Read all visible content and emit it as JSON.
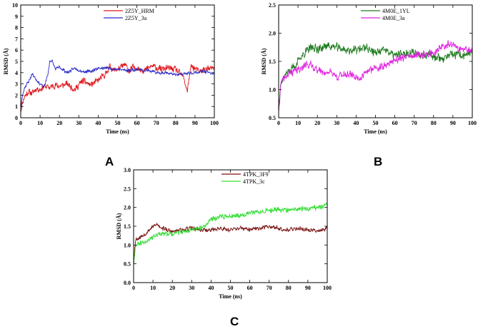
{
  "figure": {
    "panel_letters": [
      "A",
      "B",
      "C"
    ]
  },
  "chart_data": [
    {
      "type": "line",
      "panel": "A",
      "title": "",
      "xlabel": "Time (ns)",
      "ylabel": "RMSD (Å)",
      "xlim": [
        0,
        100
      ],
      "ylim": [
        0,
        10
      ],
      "xticks": [
        0,
        10,
        20,
        30,
        40,
        50,
        60,
        70,
        80,
        90,
        100
      ],
      "yticks": [
        0,
        1,
        2,
        3,
        4,
        5,
        6,
        7,
        8,
        9,
        10
      ],
      "ytick_decimals": 0,
      "legend_position": "top-center",
      "series": [
        {
          "name": "2Z5Y_HRM",
          "color": "#e0191f",
          "x": [
            0,
            1,
            2,
            4,
            6,
            8,
            10,
            12,
            15,
            18,
            20,
            24,
            28,
            32,
            36,
            40,
            44,
            46,
            48,
            50,
            54,
            56,
            58,
            60,
            64,
            68,
            72,
            76,
            80,
            84,
            86,
            88,
            92,
            96,
            100
          ],
          "y": [
            0.6,
            1.4,
            1.9,
            2.3,
            2.2,
            2.6,
            2.5,
            2.8,
            2.7,
            2.9,
            2.8,
            3.0,
            2.5,
            3.3,
            2.9,
            3.3,
            3.9,
            4.6,
            4.2,
            4.3,
            4.7,
            4.1,
            4.5,
            4.4,
            4.2,
            4.6,
            4.3,
            4.4,
            4.3,
            3.6,
            2.4,
            4.6,
            4.1,
            4.3,
            4.4
          ],
          "noise": 0.35,
          "seed": 11
        },
        {
          "name": "2Z5Y_3a",
          "color": "#2a2bc8",
          "x": [
            0,
            1,
            2,
            4,
            6,
            8,
            10,
            12,
            14,
            15,
            16,
            18,
            20,
            24,
            28,
            32,
            36,
            40,
            45,
            50,
            55,
            60,
            65,
            70,
            75,
            80,
            85,
            90,
            95,
            100
          ],
          "y": [
            0.8,
            2.0,
            2.7,
            3.2,
            3.9,
            3.4,
            3.0,
            2.7,
            3.8,
            5.0,
            5.1,
            4.3,
            4.5,
            4.0,
            4.4,
            4.1,
            4.1,
            4.4,
            4.4,
            4.3,
            4.2,
            4.3,
            4.2,
            4.0,
            4.0,
            3.8,
            3.9,
            4.0,
            4.1,
            3.9
          ],
          "noise": 0.18,
          "seed": 23
        }
      ]
    },
    {
      "type": "line",
      "panel": "B",
      "title": "",
      "xlabel": "Time (ns)",
      "ylabel": "RMSD (Å)",
      "xlim": [
        0,
        100
      ],
      "ylim": [
        0.5,
        2.5
      ],
      "xticks": [
        0,
        10,
        20,
        30,
        40,
        50,
        60,
        70,
        80,
        90,
        100
      ],
      "yticks": [
        0.5,
        1.0,
        1.5,
        2.0,
        2.5
      ],
      "ytick_decimals": 1,
      "legend_position": "top-center",
      "series": [
        {
          "name": "4M0E_1YL",
          "color": "#1d7a1d",
          "x": [
            0,
            1,
            3,
            6,
            9,
            12,
            15,
            18,
            21,
            25,
            30,
            35,
            40,
            45,
            50,
            55,
            60,
            65,
            70,
            75,
            80,
            85,
            90,
            95,
            100
          ],
          "y": [
            0.6,
            1.1,
            1.25,
            1.35,
            1.45,
            1.6,
            1.7,
            1.75,
            1.72,
            1.78,
            1.75,
            1.7,
            1.7,
            1.75,
            1.65,
            1.7,
            1.6,
            1.65,
            1.65,
            1.62,
            1.6,
            1.55,
            1.62,
            1.6,
            1.65
          ],
          "noise": 0.09,
          "seed": 37
        },
        {
          "name": "4M0E_3a",
          "color": "#e020e0",
          "x": [
            0,
            1,
            3,
            6,
            10,
            13,
            16,
            20,
            24,
            27,
            30,
            34,
            38,
            42,
            46,
            50,
            54,
            58,
            62,
            66,
            70,
            75,
            80,
            84,
            88,
            92,
            96,
            100
          ],
          "y": [
            0.6,
            1.1,
            1.2,
            1.3,
            1.35,
            1.42,
            1.45,
            1.35,
            1.3,
            1.32,
            1.22,
            1.28,
            1.25,
            1.2,
            1.32,
            1.4,
            1.4,
            1.5,
            1.55,
            1.58,
            1.6,
            1.62,
            1.65,
            1.75,
            1.8,
            1.75,
            1.7,
            1.68
          ],
          "noise": 0.08,
          "seed": 41
        }
      ]
    },
    {
      "type": "line",
      "panel": "C",
      "title": "",
      "xlabel": "Time (ns)",
      "ylabel": "RMSD (Å)",
      "xlim": [
        0,
        100
      ],
      "ylim": [
        0.0,
        3.0
      ],
      "xticks": [
        0,
        10,
        20,
        30,
        40,
        50,
        60,
        70,
        80,
        90,
        100
      ],
      "yticks": [
        0.0,
        0.5,
        1.0,
        1.5,
        2.0,
        2.5,
        3.0
      ],
      "ytick_decimals": 1,
      "legend_position": "top-center",
      "series": [
        {
          "name": "4TPK_3F9",
          "color": "#7a1212",
          "x": [
            0,
            1,
            3,
            6,
            9,
            12,
            15,
            20,
            25,
            30,
            35,
            40,
            45,
            50,
            55,
            60,
            65,
            70,
            75,
            80,
            85,
            90,
            95,
            100
          ],
          "y": [
            0.5,
            1.15,
            1.2,
            1.3,
            1.45,
            1.55,
            1.45,
            1.35,
            1.4,
            1.45,
            1.4,
            1.4,
            1.45,
            1.4,
            1.45,
            1.4,
            1.45,
            1.5,
            1.45,
            1.4,
            1.45,
            1.4,
            1.38,
            1.45
          ],
          "noise": 0.07,
          "seed": 53
        },
        {
          "name": "4TPK_3c",
          "color": "#33dd33",
          "x": [
            0,
            1,
            3,
            6,
            9,
            12,
            15,
            20,
            25,
            30,
            35,
            38,
            40,
            45,
            50,
            55,
            60,
            65,
            70,
            75,
            80,
            85,
            90,
            95,
            100
          ],
          "y": [
            0.5,
            1.0,
            1.05,
            1.1,
            1.2,
            1.25,
            1.3,
            1.3,
            1.35,
            1.4,
            1.45,
            1.55,
            1.7,
            1.75,
            1.78,
            1.8,
            1.85,
            1.9,
            1.92,
            1.95,
            1.92,
            1.95,
            1.98,
            2.0,
            2.05
          ],
          "noise": 0.08,
          "seed": 67
        }
      ]
    }
  ]
}
